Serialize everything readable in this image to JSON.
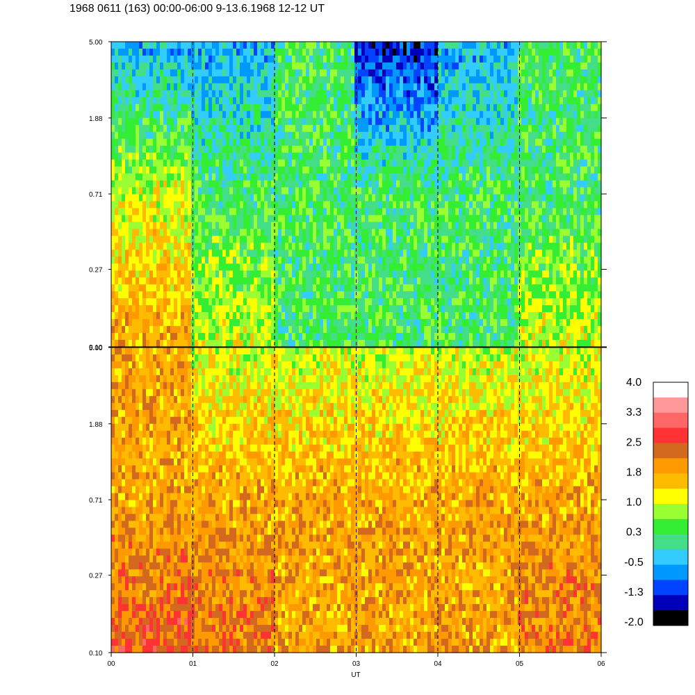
{
  "title": "1968 0611 (163) 00:00-06:00 9-13.6.1968  12-12 UT",
  "chart_data": {
    "type": "heatmap",
    "xlabel": "UT",
    "x_ticks": [
      "00",
      "01",
      "02",
      "03",
      "04",
      "05",
      "06"
    ],
    "xlim": [
      0,
      6
    ],
    "vertical_dashed_gridlines_at_hours": [
      1,
      2,
      3,
      4,
      5
    ],
    "y_scale": "log",
    "panels": [
      {
        "name": "upper",
        "ylim": [
          0.1,
          5.0
        ],
        "y_ticks": [
          "5.00",
          "1.88",
          "0.71",
          "0.27",
          "0.10"
        ],
        "dominant_levels_by_hour": [
          {
            "hour": "00-01",
            "high_freq": -0.5,
            "mid_freq": 1.0,
            "low_freq": 1.8
          },
          {
            "hour": "01-02",
            "high_freq": -0.5,
            "mid_freq": 0.3,
            "low_freq": 1.0
          },
          {
            "hour": "02-03",
            "high_freq": 0.3,
            "mid_freq": 0.3,
            "low_freq": 0.3
          },
          {
            "hour": "03-04",
            "high_freq": -1.3,
            "mid_freq": 0.3,
            "low_freq": 0.3
          },
          {
            "hour": "04-05",
            "high_freq": -0.5,
            "mid_freq": 0.3,
            "low_freq": 0.3
          },
          {
            "hour": "05-06",
            "high_freq": 0.3,
            "mid_freq": 0.3,
            "low_freq": 1.0
          }
        ]
      },
      {
        "name": "lower",
        "ylim": [
          0.1,
          5.0
        ],
        "y_ticks": [
          "5.00",
          "1.88",
          "0.71",
          "0.27",
          "0.10"
        ],
        "dominant_levels_by_hour": [
          {
            "hour": "00-01",
            "high_freq": 1.8,
            "mid_freq": 1.8,
            "low_freq": 2.5
          },
          {
            "hour": "01-02",
            "high_freq": 1.0,
            "mid_freq": 1.8,
            "low_freq": 2.2
          },
          {
            "hour": "02-03",
            "high_freq": 1.0,
            "mid_freq": 1.8,
            "low_freq": 1.8
          },
          {
            "hour": "03-04",
            "high_freq": 1.0,
            "mid_freq": 1.8,
            "low_freq": 1.8
          },
          {
            "hour": "04-05",
            "high_freq": 1.0,
            "mid_freq": 1.8,
            "low_freq": 1.8
          },
          {
            "hour": "05-06",
            "high_freq": 1.0,
            "mid_freq": 1.8,
            "low_freq": 2.2
          }
        ]
      }
    ],
    "colorbar": {
      "labels": [
        "4.0",
        "3.3",
        "2.5",
        "1.8",
        "1.0",
        "0.3",
        "-0.5",
        "-1.3",
        "-2.0"
      ],
      "colors": [
        "#ffffff",
        "#ff9999",
        "#ff6666",
        "#ff3333",
        "#d2691e",
        "#ff9900",
        "#ffbb00",
        "#ffff00",
        "#99ff33",
        "#33ee33",
        "#44dd88",
        "#33ccff",
        "#0099ff",
        "#0044ff",
        "#0000bb",
        "#000000"
      ]
    }
  }
}
